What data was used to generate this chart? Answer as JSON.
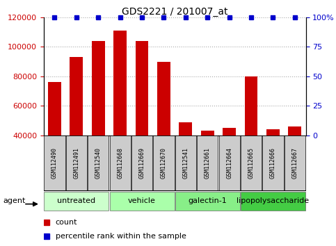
{
  "title": "GDS2221 / 201007_at",
  "samples": [
    "GSM112490",
    "GSM112491",
    "GSM112540",
    "GSM112668",
    "GSM112669",
    "GSM112670",
    "GSM112541",
    "GSM112661",
    "GSM112664",
    "GSM112665",
    "GSM112666",
    "GSM112667"
  ],
  "counts": [
    76000,
    93000,
    104000,
    111000,
    104000,
    90000,
    49000,
    43000,
    45000,
    80000,
    44000,
    46000
  ],
  "percentiles": [
    100,
    100,
    100,
    100,
    100,
    100,
    100,
    100,
    100,
    100,
    100,
    100
  ],
  "bar_color": "#cc0000",
  "dot_color": "#0000cc",
  "ylim_left": [
    40000,
    120000
  ],
  "ylim_right": [
    0,
    100
  ],
  "yticks_left": [
    40000,
    60000,
    80000,
    100000,
    120000
  ],
  "yticks_right": [
    0,
    25,
    50,
    75,
    100
  ],
  "ytick_labels_right": [
    "0",
    "25",
    "50",
    "75",
    "100%"
  ],
  "groups": [
    {
      "label": "untreated",
      "start": 0,
      "end": 3,
      "color": "#ccffcc"
    },
    {
      "label": "vehicle",
      "start": 3,
      "end": 6,
      "color": "#aaffaa"
    },
    {
      "label": "galectin-1",
      "start": 6,
      "end": 9,
      "color": "#88ee88"
    },
    {
      "label": "lipopolysaccharide",
      "start": 9,
      "end": 12,
      "color": "#44cc44"
    }
  ],
  "legend_count_label": "count",
  "legend_percentile_label": "percentile rank within the sample",
  "agent_label": "agent",
  "grid_color": "#aaaaaa",
  "background_color": "#ffffff",
  "sample_box_color": "#cccccc",
  "title_fontsize": 10,
  "tick_fontsize": 8,
  "group_fontsize": 8,
  "sample_fontsize": 6,
  "legend_fontsize": 8
}
